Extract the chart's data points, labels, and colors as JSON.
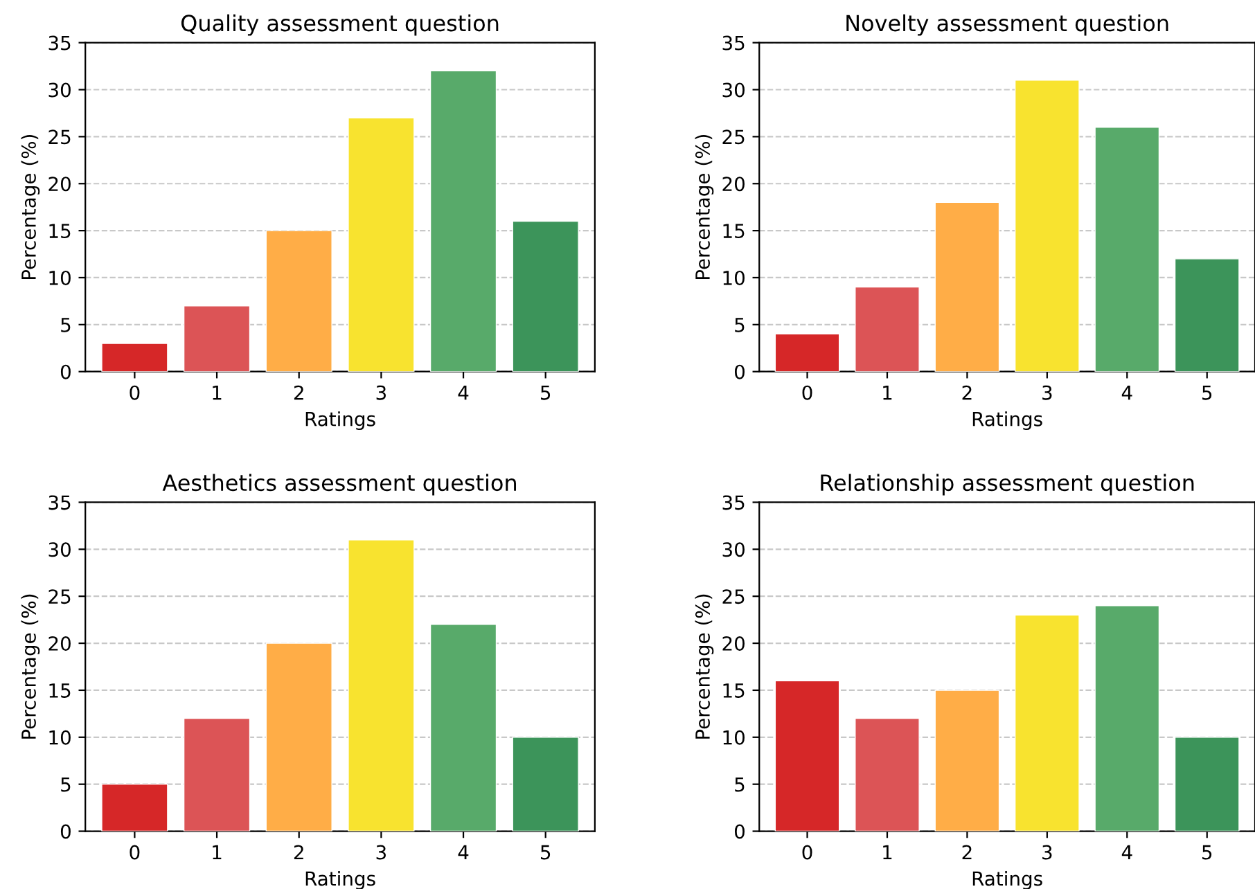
{
  "chart_data": [
    {
      "type": "bar",
      "title": "Quality assessment question",
      "xlabel": "Ratings",
      "ylabel": "Percentage (%)",
      "categories": [
        "0",
        "1",
        "2",
        "3",
        "4",
        "5"
      ],
      "values": [
        3,
        7,
        15,
        27,
        32,
        16
      ],
      "colors": [
        "#d62728",
        "#dc5456",
        "#ffad47",
        "#f8e32f",
        "#58aa6a",
        "#3c945a"
      ],
      "ylim": [
        0,
        35
      ],
      "yticks": [
        0,
        5,
        10,
        15,
        20,
        25,
        30,
        35
      ],
      "grid": "y"
    },
    {
      "type": "bar",
      "title": "Novelty assessment question",
      "xlabel": "Ratings",
      "ylabel": "Percentage (%)",
      "categories": [
        "0",
        "1",
        "2",
        "3",
        "4",
        "5"
      ],
      "values": [
        4,
        9,
        18,
        31,
        26,
        12
      ],
      "colors": [
        "#d62728",
        "#dc5456",
        "#ffad47",
        "#f8e32f",
        "#58aa6a",
        "#3c945a"
      ],
      "ylim": [
        0,
        35
      ],
      "yticks": [
        0,
        5,
        10,
        15,
        20,
        25,
        30,
        35
      ],
      "grid": "y"
    },
    {
      "type": "bar",
      "title": "Aesthetics assessment question",
      "xlabel": "Ratings",
      "ylabel": "Percentage (%)",
      "categories": [
        "0",
        "1",
        "2",
        "3",
        "4",
        "5"
      ],
      "values": [
        5,
        12,
        20,
        31,
        22,
        10
      ],
      "colors": [
        "#d62728",
        "#dc5456",
        "#ffad47",
        "#f8e32f",
        "#58aa6a",
        "#3c945a"
      ],
      "ylim": [
        0,
        35
      ],
      "yticks": [
        0,
        5,
        10,
        15,
        20,
        25,
        30,
        35
      ],
      "grid": "y"
    },
    {
      "type": "bar",
      "title": "Relationship assessment question",
      "xlabel": "Ratings",
      "ylabel": "Percentage (%)",
      "categories": [
        "0",
        "1",
        "2",
        "3",
        "4",
        "5"
      ],
      "values": [
        16,
        12,
        15,
        23,
        24,
        10
      ],
      "colors": [
        "#d62728",
        "#dc5456",
        "#ffad47",
        "#f8e32f",
        "#58aa6a",
        "#3c945a"
      ],
      "ylim": [
        0,
        35
      ],
      "yticks": [
        0,
        5,
        10,
        15,
        20,
        25,
        30,
        35
      ],
      "grid": "y"
    }
  ]
}
